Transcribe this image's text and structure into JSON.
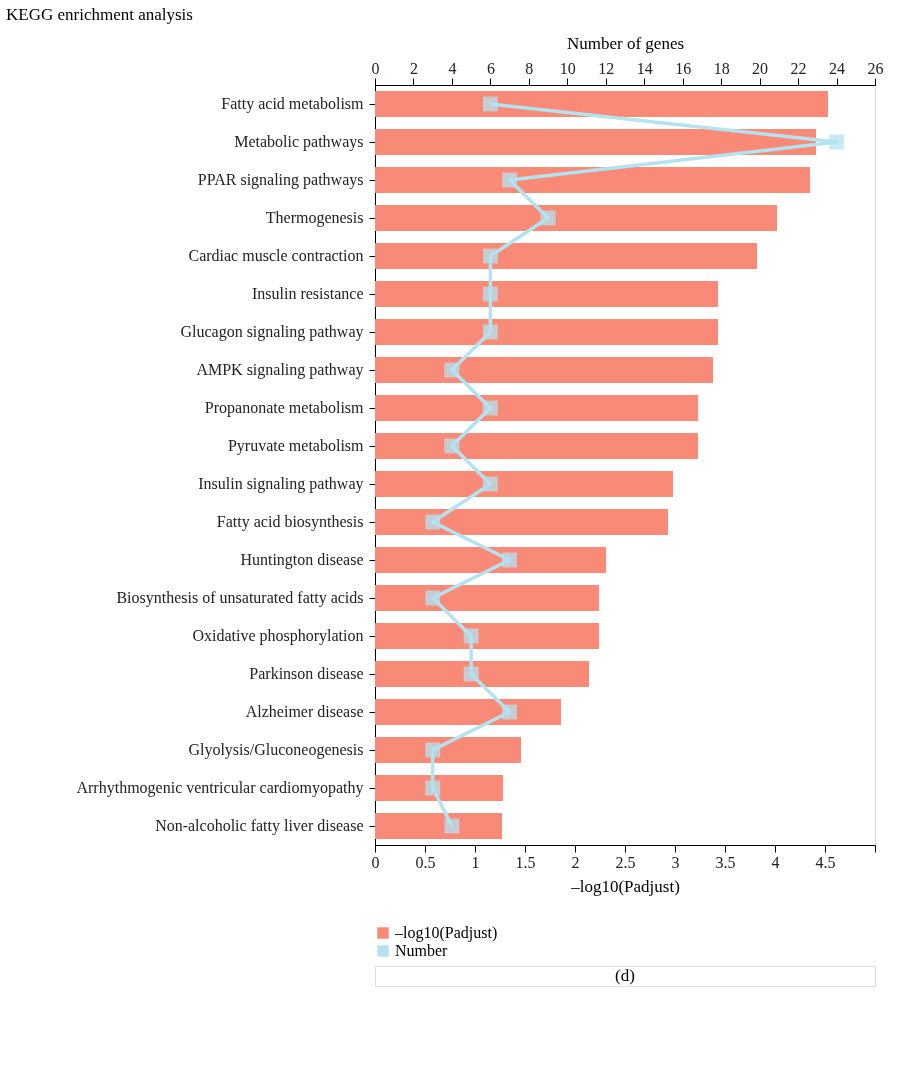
{
  "chart_data": {
    "type": "bar",
    "orientation": "horizontal",
    "title": "KEGG enrichment analysis",
    "xlabel": "–log10(Padjust)",
    "x2label": "Number of genes",
    "categories": [
      "Fatty acid metabolism",
      "Metabolic pathways",
      "PPAR signaling pathways",
      "Thermogenesis",
      "Cardiac muscle contraction",
      "Insulin resistance",
      "Glucagon signaling pathway",
      "AMPK signaling pathway",
      "Propanonate metabolism",
      "Pyruvate metabolism",
      "Insulin signaling pathway",
      "Fatty acid biosynthesis",
      "Huntington disease",
      "Biosynthesis of unsaturated fatty acids",
      "Oxidative phosphorylation",
      "Parkinson disease",
      "Alzheimer disease",
      "Glyolysis/Gluconeogenesis",
      "Arrhythmogenic ventricular cardiomyopathy",
      "Non-alcoholic fatty liver disease"
    ],
    "series": [
      {
        "name": "–log10(Padjust)",
        "color": "#fa8a78",
        "values": [
          4.53,
          4.41,
          4.35,
          4.02,
          3.82,
          3.43,
          3.43,
          3.38,
          3.23,
          3.23,
          2.98,
          2.93,
          2.31,
          2.24,
          2.24,
          2.14,
          1.86,
          1.46,
          1.28,
          1.27
        ]
      },
      {
        "name": "Number",
        "type": "line",
        "axis": "x2",
        "color": "#b3e3f0",
        "marker": "square",
        "values": [
          6,
          24,
          7,
          9,
          6,
          6,
          6,
          4,
          6,
          4,
          6,
          3,
          7,
          3,
          5,
          5,
          7,
          3,
          3,
          4
        ]
      }
    ],
    "xlim": [
      0,
      5
    ],
    "xticks": [
      0,
      0.5,
      1,
      1.5,
      2,
      2.5,
      3,
      3.5,
      4,
      4.5,
      {
        "value": 5,
        "label": null
      }
    ],
    "x2lim": [
      0,
      26
    ],
    "x2ticks": [
      0,
      2,
      4,
      6,
      8,
      10,
      12,
      14,
      16,
      18,
      20,
      22,
      24,
      26
    ],
    "grid": false,
    "legend": "bottom",
    "annotations": [
      "(d)"
    ]
  }
}
